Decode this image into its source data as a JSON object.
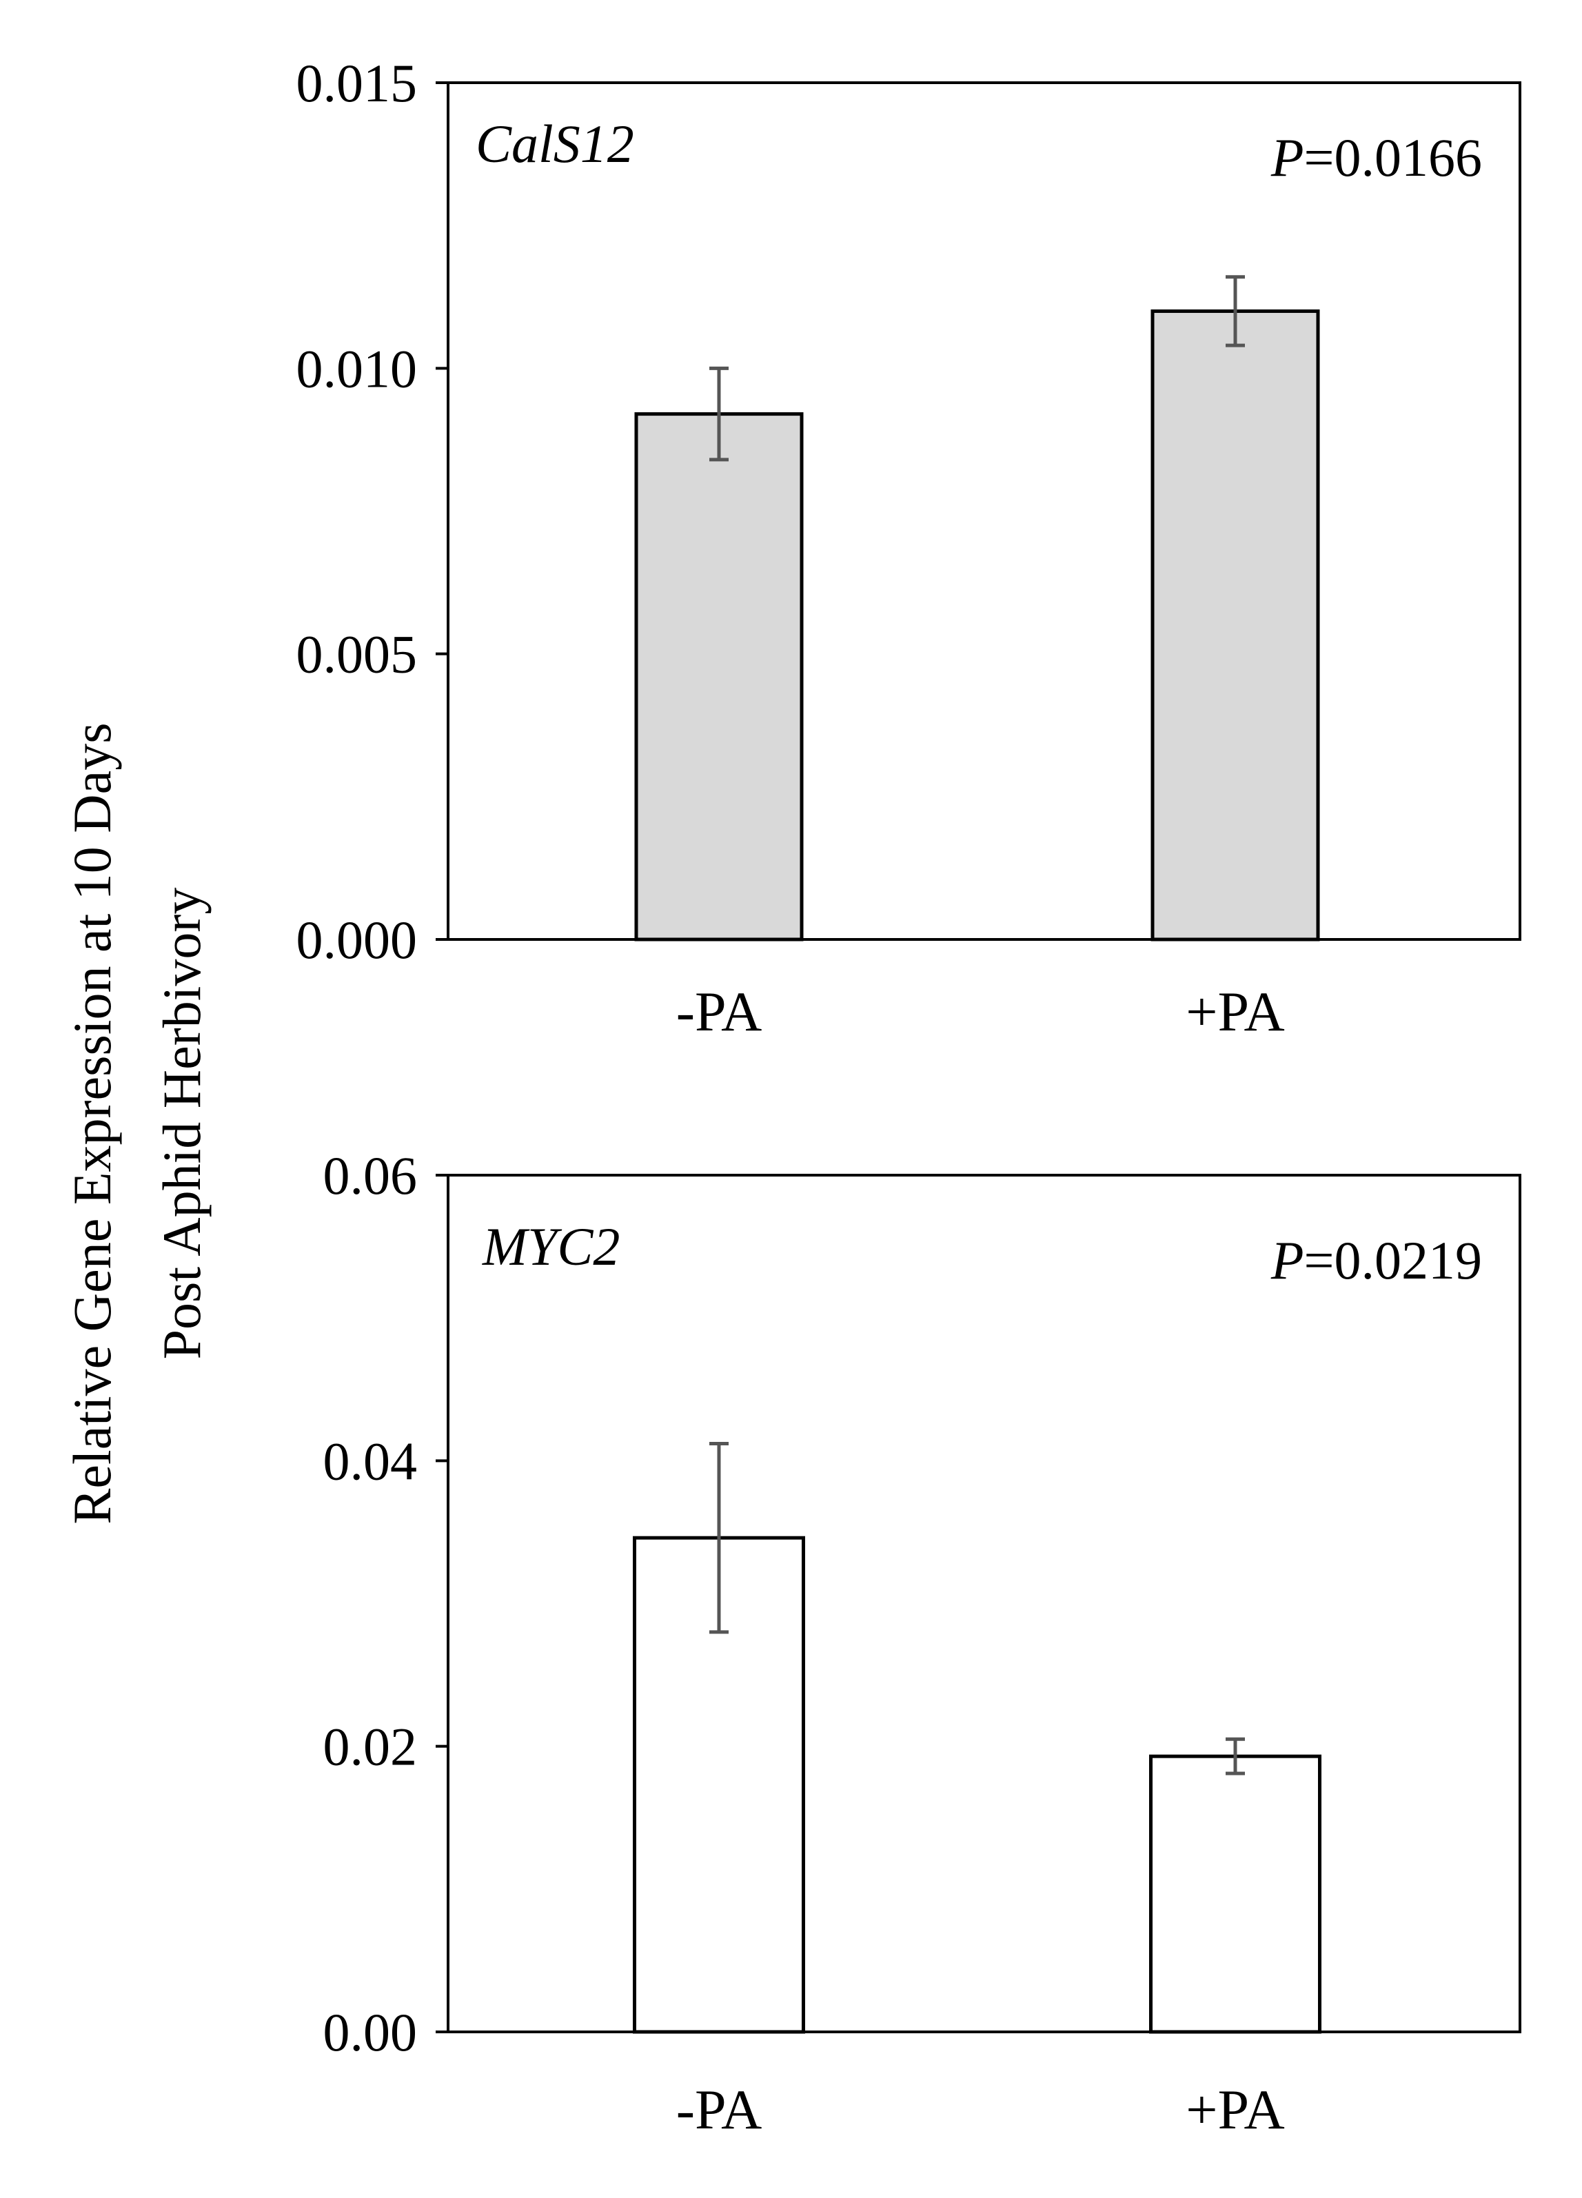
{
  "ylabel_line1": "Relative  Gene Expression  at 10 Days",
  "ylabel_line2": "Post Aphid Herbivory",
  "chart_data": [
    {
      "type": "bar",
      "gene": "CalS12",
      "p_label": "P",
      "p_value": "=0.0166",
      "categories": [
        "-PA",
        "+PA"
      ],
      "values": [
        0.0092,
        0.011
      ],
      "errors": [
        0.0008,
        0.0006
      ],
      "ylim": [
        0,
        0.015
      ],
      "yticks": [
        "0.000",
        "0.005",
        "0.010",
        "0.015"
      ],
      "ytick_values": [
        0,
        0.005,
        0.01,
        0.015
      ],
      "bar_color": "#d9d9d9"
    },
    {
      "type": "bar",
      "gene": "MYC2",
      "p_label": "P",
      "p_value": "=0.0219",
      "categories": [
        "-PA",
        "+PA"
      ],
      "values": [
        0.0346,
        0.0193
      ],
      "errors": [
        0.0066,
        0.0012
      ],
      "ylim": [
        0,
        0.06
      ],
      "yticks": [
        "0.00",
        "0.02",
        "0.04",
        "0.06"
      ],
      "ytick_values": [
        0,
        0.02,
        0.04,
        0.06
      ],
      "bar_color": "#ffffff"
    }
  ]
}
